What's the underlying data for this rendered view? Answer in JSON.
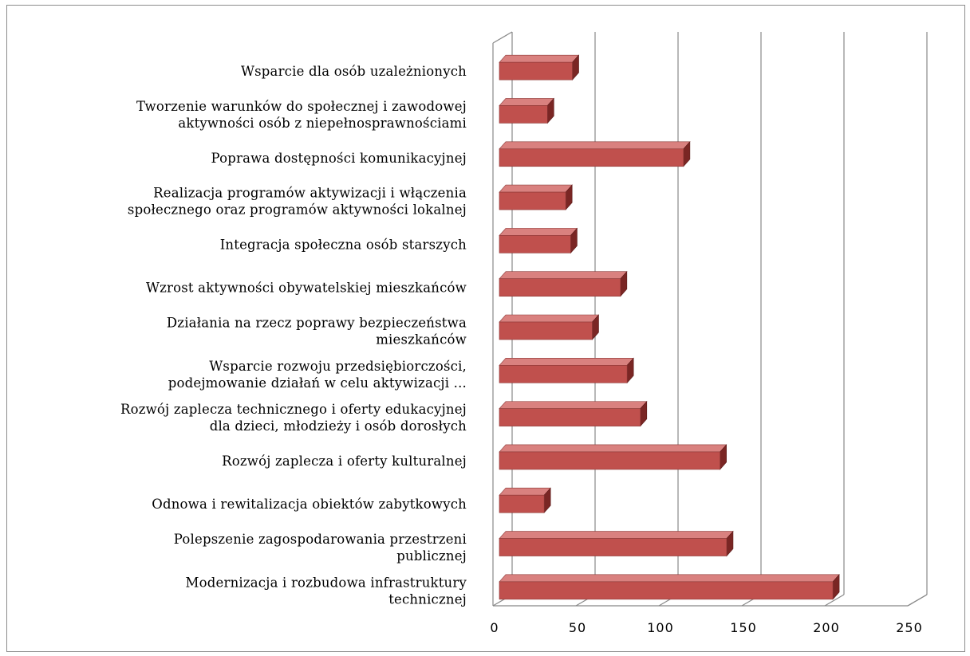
{
  "chart_data": {
    "type": "bar",
    "orientation": "horizontal",
    "style": "3d",
    "title": "",
    "xlabel": "",
    "ylabel": "",
    "categories": [
      [
        "Wsparcie dla osób uzależnionych"
      ],
      [
        "Tworzenie warunków do społecznej i zawodowej",
        "aktywności osób z niepełnosprawnościami"
      ],
      [
        "Poprawa dostępności komunikacyjnej"
      ],
      [
        "Realizacja programów aktywizacji i włączenia",
        "społecznego oraz programów aktywności lokalnej"
      ],
      [
        "Integracja społeczna osób starszych"
      ],
      [
        "Wzrost aktywności obywatelskiej mieszkańców"
      ],
      [
        "Działania na rzecz poprawy bezpieczeństwa",
        "mieszkańców"
      ],
      [
        "Wsparcie rozwoju przedsiębiorczości,",
        "podejmowanie działań w celu aktywizacji ..."
      ],
      [
        "Rozwój zaplecza technicznego i oferty edukacyjnej",
        "dla dzieci, młodzieży i osób dorosłych"
      ],
      [
        "Rozwój zaplecza i oferty kulturalnej"
      ],
      [
        "Odnowa i rewitalizacja obiektów zabytkowych"
      ],
      [
        "Polepszenie zagospodarowania przestrzeni",
        "publicznej"
      ],
      [
        "Modernizacja i rozbudowa infrastruktury",
        "technicznej"
      ]
    ],
    "values": [
      44,
      29,
      111,
      40,
      43,
      73,
      56,
      77,
      85,
      133,
      27,
      137,
      201
    ],
    "xlim": [
      0,
      250
    ],
    "xticks": [
      "0",
      "50",
      "100",
      "150",
      "200",
      "250"
    ],
    "grid": true,
    "legend": "none",
    "colors": {
      "bar_front": "#c0504d",
      "bar_top": "#d9817f",
      "bar_side": "#7a2624",
      "grid": "#888888"
    }
  }
}
